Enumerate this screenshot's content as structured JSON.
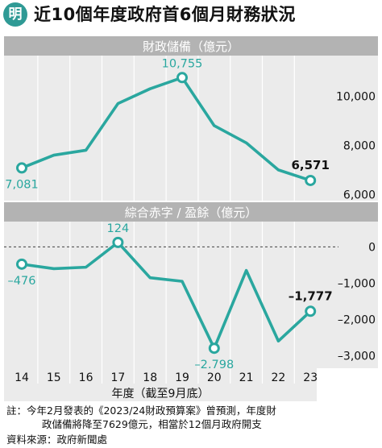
{
  "header": {
    "logo_text": "明",
    "title": "近10個年度政府首6個月財務狀況"
  },
  "chart_data": [
    {
      "type": "line",
      "title": "財政儲備（億元）",
      "x": [
        "14",
        "15",
        "16",
        "17",
        "18",
        "19",
        "20",
        "21",
        "22",
        "23"
      ],
      "series": [
        {
          "values": [
            7081,
            7600,
            7800,
            9700,
            10300,
            10755,
            8800,
            8100,
            7000,
            6571
          ]
        }
      ],
      "labeled_points": [
        {
          "index": 0,
          "text": "7,081",
          "highlight": false
        },
        {
          "index": 5,
          "text": "10,755",
          "highlight": false
        },
        {
          "index": 9,
          "text": "6,571",
          "highlight": true
        }
      ],
      "yticks": [
        6000,
        8000,
        10000
      ],
      "ytick_labels": [
        "6,000",
        "8,000",
        "10,000"
      ],
      "ylim": [
        5750,
        11650
      ],
      "grid": "vertical"
    },
    {
      "type": "line",
      "title": "綜合赤字 / 盈餘（億元）",
      "x": [
        "14",
        "15",
        "16",
        "17",
        "18",
        "19",
        "20",
        "21",
        "22",
        "23"
      ],
      "series": [
        {
          "values": [
            -476,
            -600,
            -560,
            124,
            -850,
            -950,
            -2798,
            -650,
            -2600,
            -1777
          ]
        }
      ],
      "labeled_points": [
        {
          "index": 0,
          "text": "–476",
          "highlight": false
        },
        {
          "index": 3,
          "text": "124",
          "highlight": false
        },
        {
          "index": 6,
          "text": "–2,798",
          "highlight": false
        },
        {
          "index": 9,
          "text": "–1,777",
          "highlight": true
        }
      ],
      "yticks": [
        0,
        -1000,
        -2000,
        -3000
      ],
      "ytick_labels": [
        "0",
        "–1,000",
        "–2,000",
        "–3,000"
      ],
      "ylim": [
        -3350,
        700
      ],
      "zero_line": "dashed",
      "grid": "vertical"
    }
  ],
  "xaxis": {
    "tick_labels": [
      "14",
      "15",
      "16",
      "17",
      "18",
      "19",
      "20",
      "21",
      "22",
      "23"
    ],
    "label": "年度（截至9月底）"
  },
  "colors": {
    "line": "#2aa79f",
    "marker_fill": "#ffffff",
    "panel_header": "#b3b3b3",
    "panel_bg": "#ebebeb",
    "grid": "#ffffff",
    "label_teal": "#2aa79f",
    "label_dark": "#111111",
    "logo": "#2f9a95"
  },
  "footnote": {
    "line1": "註：今年2月發表的《2023/24財政預算案》曾預測，年度財",
    "line2": "政儲備將降至7629億元，相當於12個月政府開支"
  },
  "source": "資料來源：政府新聞處"
}
